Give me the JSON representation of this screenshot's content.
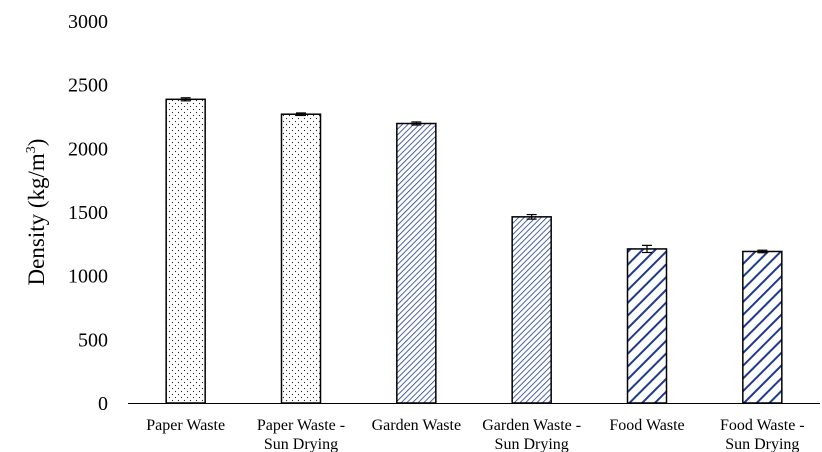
{
  "chart_data": {
    "type": "bar",
    "title": "",
    "xlabel": "",
    "ylabel": "Density (kg/m",
    "ylabel_superscript": "3",
    "ylabel_suffix": ")",
    "ylim": [
      0,
      3000
    ],
    "yticks": [
      0,
      500,
      1000,
      1500,
      2000,
      2500,
      3000
    ],
    "grid": false,
    "legend": "none",
    "categories": [
      [
        "Paper Waste"
      ],
      [
        "Paper Waste -",
        "Sun Drying"
      ],
      [
        "Garden Waste"
      ],
      [
        "Garden Waste -",
        "Sun Drying"
      ],
      [
        "Food Waste"
      ],
      [
        "Food Waste -",
        "Sun Drying"
      ]
    ],
    "values": [
      2385,
      2268,
      2195,
      1462,
      1210,
      1190
    ],
    "errors": [
      12,
      10,
      12,
      18,
      28,
      10
    ],
    "patterns": [
      "dots",
      "dots",
      "fine-diagonal",
      "fine-diagonal",
      "wide-diagonal",
      "wide-diagonal"
    ],
    "colors": {
      "pattern": "#1f3a8f",
      "dots": "#222222",
      "axis": "#000000",
      "bar_outline": "#000000"
    }
  }
}
